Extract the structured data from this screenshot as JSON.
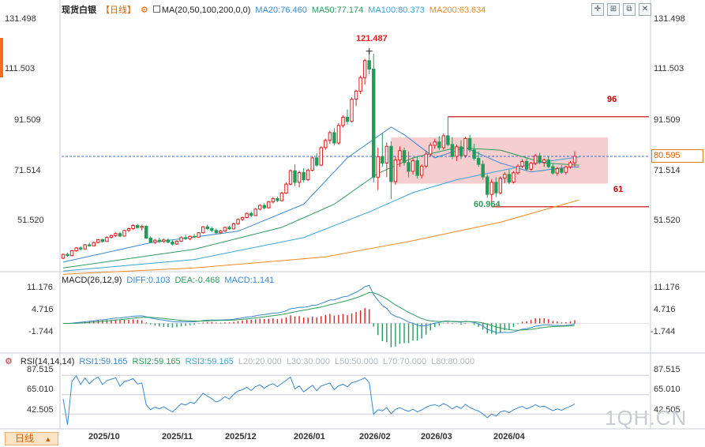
{
  "chart_data": [
    {
      "type": "candlestick",
      "title": "现货白银",
      "period_label": "【日线】",
      "indicator_label": "MA(20,50,100,200,0,0)",
      "ma_labels": [
        {
          "text": "MA20:76.460",
          "color": "#3a88d0"
        },
        {
          "text": "MA50:77.174",
          "color": "#2d9b5a"
        },
        {
          "text": "MA100:80.373",
          "color": "#3aa3d8"
        },
        {
          "text": "MA200:63.634",
          "color": "#f08a24"
        }
      ],
      "y_ticks": [
        "131.498",
        "111.503",
        "91.509",
        "71.514",
        "51.520"
      ],
      "y_tick_values": [
        131.498,
        111.503,
        91.509,
        71.514,
        51.52
      ],
      "ylim": [
        37.0,
        134.0
      ],
      "x_ticks": [
        "2025/10",
        "2025/11",
        "2025/12",
        "2026/01",
        "2026/02",
        "2026/03",
        "2026/04"
      ],
      "last_price": "80.595",
      "last_price_value": 80.595,
      "annotations": [
        {
          "text": "121.487",
          "value": 121.487,
          "color": "#e02020"
        },
        {
          "text": "60.964",
          "value": 60.964,
          "color": "#2d9b5a"
        },
        {
          "text": "96",
          "value": 96,
          "color": "#c00000"
        },
        {
          "text": "61",
          "value": 61,
          "color": "#c00000"
        }
      ],
      "range_box": {
        "low": 70.0,
        "high": 88.0
      },
      "candles": [
        [
          41.0,
          42.8,
          40.6,
          42.5
        ],
        [
          42.5,
          43.2,
          41.6,
          42.0
        ],
        [
          42.0,
          44.2,
          41.8,
          43.9
        ],
        [
          43.9,
          45.3,
          43.5,
          45.0
        ],
        [
          45.0,
          45.6,
          44.0,
          44.6
        ],
        [
          44.6,
          46.5,
          44.3,
          46.2
        ],
        [
          46.2,
          47.0,
          45.5,
          45.8
        ],
        [
          45.8,
          47.4,
          45.6,
          47.1
        ],
        [
          47.1,
          48.5,
          46.8,
          48.2
        ],
        [
          48.2,
          48.6,
          47.0,
          47.5
        ],
        [
          47.5,
          49.5,
          47.3,
          49.1
        ],
        [
          49.1,
          50.2,
          48.7,
          49.8
        ],
        [
          49.8,
          51.0,
          49.3,
          50.6
        ],
        [
          50.6,
          51.2,
          49.2,
          49.6
        ],
        [
          49.6,
          52.1,
          49.4,
          51.8
        ],
        [
          51.8,
          53.0,
          51.2,
          52.5
        ],
        [
          52.5,
          54.2,
          52.0,
          53.7
        ],
        [
          53.7,
          54.4,
          52.5,
          52.9
        ],
        [
          52.9,
          54.0,
          51.8,
          53.4
        ],
        [
          53.4,
          53.8,
          48.5,
          48.8
        ],
        [
          48.8,
          49.5,
          46.8,
          47.2
        ],
        [
          47.2,
          48.5,
          46.5,
          48.0
        ],
        [
          48.0,
          49.0,
          46.9,
          47.5
        ],
        [
          47.5,
          48.6,
          47.0,
          48.1
        ],
        [
          48.1,
          48.8,
          46.8,
          47.3
        ],
        [
          47.3,
          48.2,
          46.0,
          46.5
        ],
        [
          46.5,
          48.0,
          46.2,
          47.6
        ],
        [
          47.6,
          49.5,
          47.3,
          49.0
        ],
        [
          49.0,
          50.1,
          48.1,
          48.6
        ],
        [
          48.6,
          49.8,
          48.0,
          49.5
        ],
        [
          49.5,
          50.5,
          48.8,
          49.2
        ],
        [
          49.2,
          51.2,
          49.0,
          50.9
        ],
        [
          50.9,
          53.5,
          50.6,
          53.2
        ],
        [
          53.2,
          54.0,
          52.0,
          52.5
        ],
        [
          52.5,
          53.2,
          51.2,
          51.8
        ],
        [
          51.8,
          52.6,
          50.5,
          50.9
        ],
        [
          50.9,
          52.0,
          50.4,
          51.6
        ],
        [
          51.6,
          53.3,
          51.3,
          53.0
        ],
        [
          53.0,
          53.6,
          52.0,
          52.4
        ],
        [
          52.4,
          54.8,
          52.2,
          54.4
        ],
        [
          54.4,
          56.5,
          54.0,
          56.1
        ],
        [
          56.1,
          57.2,
          55.4,
          56.8
        ],
        [
          56.8,
          58.8,
          56.5,
          58.4
        ],
        [
          58.4,
          59.2,
          57.0,
          57.6
        ],
        [
          57.6,
          60.5,
          57.3,
          60.1
        ],
        [
          60.1,
          62.0,
          59.6,
          61.5
        ],
        [
          61.5,
          62.4,
          60.0,
          60.6
        ],
        [
          60.6,
          63.3,
          60.3,
          62.9
        ],
        [
          62.9,
          64.8,
          62.3,
          64.2
        ],
        [
          64.2,
          65.0,
          62.8,
          63.4
        ],
        [
          63.4,
          66.8,
          63.0,
          66.3
        ],
        [
          66.3,
          70.5,
          66.0,
          69.8
        ],
        [
          69.8,
          75.5,
          69.3,
          75.0
        ],
        [
          75.0,
          77.5,
          69.0,
          70.5
        ],
        [
          70.5,
          75.0,
          68.5,
          74.3
        ],
        [
          74.3,
          76.0,
          70.5,
          71.5
        ],
        [
          71.5,
          75.8,
          71.0,
          75.2
        ],
        [
          75.2,
          80.5,
          74.8,
          80.0
        ],
        [
          80.0,
          81.8,
          76.5,
          77.2
        ],
        [
          77.2,
          84.5,
          76.8,
          84.0
        ],
        [
          84.0,
          87.5,
          83.2,
          86.8
        ],
        [
          86.8,
          90.5,
          85.5,
          89.8
        ],
        [
          89.8,
          91.5,
          84.8,
          85.8
        ],
        [
          85.8,
          93.5,
          85.2,
          92.6
        ],
        [
          92.6,
          96.5,
          91.8,
          95.8
        ],
        [
          95.8,
          98.8,
          93.0,
          94.2
        ],
        [
          94.2,
          103.5,
          93.8,
          102.8
        ],
        [
          102.8,
          106.5,
          100.2,
          105.9
        ],
        [
          105.9,
          112.0,
          104.8,
          111.2
        ],
        [
          111.2,
          118.5,
          108.5,
          117.8
        ],
        [
          117.8,
          121.487,
          112.5,
          114.5
        ],
        [
          114.5,
          120.5,
          70.5,
          72.5
        ],
        [
          72.5,
          84.0,
          67.5,
          80.5
        ],
        [
          80.5,
          89.5,
          76.5,
          78.0
        ],
        [
          78.0,
          86.0,
          72.5,
          84.5
        ],
        [
          84.5,
          86.5,
          64.0,
          70.8
        ],
        [
          70.8,
          80.5,
          69.5,
          79.2
        ],
        [
          79.2,
          84.5,
          76.5,
          82.8
        ],
        [
          82.8,
          84.0,
          77.0,
          78.2
        ],
        [
          78.2,
          82.5,
          72.5,
          74.8
        ],
        [
          74.8,
          80.0,
          73.5,
          78.9
        ],
        [
          78.9,
          80.5,
          72.0,
          73.2
        ],
        [
          73.2,
          77.5,
          72.0,
          76.8
        ],
        [
          76.8,
          82.8,
          76.0,
          81.5
        ],
        [
          81.5,
          86.0,
          80.5,
          84.9
        ],
        [
          84.9,
          87.5,
          83.5,
          86.2
        ],
        [
          86.2,
          88.5,
          83.0,
          84.0
        ],
        [
          84.0,
          89.5,
          83.2,
          88.6
        ],
        [
          88.6,
          96.0,
          84.5,
          85.2
        ],
        [
          85.2,
          88.0,
          79.5,
          80.6
        ],
        [
          80.6,
          85.2,
          78.8,
          84.3
        ],
        [
          84.3,
          86.8,
          79.5,
          80.9
        ],
        [
          80.9,
          88.2,
          80.0,
          87.5
        ],
        [
          87.5,
          89.0,
          82.2,
          83.1
        ],
        [
          83.1,
          85.5,
          79.0,
          79.8
        ],
        [
          79.8,
          82.5,
          76.5,
          77.5
        ],
        [
          77.5,
          79.0,
          71.5,
          72.6
        ],
        [
          72.6,
          73.5,
          64.5,
          65.8
        ],
        [
          65.8,
          71.8,
          60.964,
          70.5
        ],
        [
          70.5,
          72.5,
          64.8,
          66.4
        ],
        [
          66.4,
          72.8,
          65.8,
          72.1
        ],
        [
          72.1,
          74.5,
          70.2,
          73.6
        ],
        [
          73.6,
          75.5,
          69.8,
          70.6
        ],
        [
          70.6,
          74.8,
          70.0,
          74.2
        ],
        [
          74.2,
          77.5,
          73.5,
          76.8
        ],
        [
          76.8,
          79.5,
          76.0,
          78.6
        ],
        [
          78.6,
          80.2,
          74.8,
          75.6
        ],
        [
          75.6,
          78.4,
          75.0,
          77.9
        ],
        [
          77.9,
          81.5,
          77.2,
          80.8
        ],
        [
          80.8,
          82.0,
          77.5,
          78.3
        ],
        [
          78.3,
          79.8,
          76.5,
          79.2
        ],
        [
          79.2,
          80.5,
          76.0,
          76.6
        ],
        [
          76.6,
          78.0,
          73.5,
          74.1
        ],
        [
          74.1,
          76.5,
          73.0,
          75.8
        ],
        [
          75.8,
          77.2,
          73.8,
          74.4
        ],
        [
          74.4,
          77.0,
          73.5,
          76.5
        ],
        [
          76.5,
          78.8,
          75.8,
          78.1
        ],
        [
          78.1,
          82.5,
          76.5,
          80.595
        ]
      ],
      "ma_series": [
        {
          "name": "MA20",
          "color": "#3a88d0",
          "values": [
            [
              0,
              39.5
            ],
            [
              20,
              47.0
            ],
            [
              40,
              51.5
            ],
            [
              55,
              62.0
            ],
            [
              65,
              80.0
            ],
            [
              75,
              92.0
            ],
            [
              78,
              89.0
            ],
            [
              85,
              80.0
            ],
            [
              92,
              84.0
            ],
            [
              100,
              78.0
            ],
            [
              107,
              74.5
            ],
            [
              115,
              76.3
            ],
            [
              118,
              76.46
            ]
          ]
        },
        {
          "name": "MA50",
          "color": "#2d9b5a",
          "values": [
            [
              0,
              37.2
            ],
            [
              30,
              44.5
            ],
            [
              50,
              53.0
            ],
            [
              62,
              62.0
            ],
            [
              72,
              74.0
            ],
            [
              80,
              80.0
            ],
            [
              90,
              84.0
            ],
            [
              100,
              83.0
            ],
            [
              110,
              78.0
            ],
            [
              118,
              77.174
            ]
          ]
        },
        {
          "name": "MA100",
          "color": "#3aa3d8",
          "values": [
            [
              0,
              36.0
            ],
            [
              30,
              40.5
            ],
            [
              55,
              49.0
            ],
            [
              70,
              59.0
            ],
            [
              80,
              66.5
            ],
            [
              90,
              71.5
            ],
            [
              100,
              75.0
            ],
            [
              110,
              78.5
            ],
            [
              118,
              80.373
            ]
          ]
        },
        {
          "name": "MA200",
          "color": "#f08a24",
          "values": [
            [
              0,
              34.8
            ],
            [
              30,
              37.2
            ],
            [
              60,
              41.5
            ],
            [
              80,
              47.8
            ],
            [
              100,
              55.0
            ],
            [
              118,
              63.634
            ]
          ]
        }
      ]
    },
    {
      "type": "macd",
      "label": "MACD(26,12,9)",
      "readouts": [
        {
          "text": "DIFF:0.103",
          "color": "#3a88d0"
        },
        {
          "text": "DEA:-0.468",
          "color": "#2d9b5a"
        },
        {
          "text": "MACD:1.141",
          "color": "#3a88d0"
        }
      ],
      "y_ticks": [
        "11.176",
        "4.716",
        "-1.744"
      ],
      "y_tick_values": [
        11.176,
        4.716,
        -1.744
      ],
      "ylim": [
        -10.0,
        13.0
      ]
    },
    {
      "type": "rsi",
      "label": "RSI(14,14,14)",
      "readouts": [
        {
          "text": "RSI1:59.165",
          "color": "#3a88d0"
        },
        {
          "text": "RSI2:59.165",
          "color": "#2d9b5a"
        },
        {
          "text": "RSI3:59.165",
          "color": "#3aa3d8"
        },
        {
          "text": "L20:20.000",
          "color": "#b0b8c0"
        },
        {
          "text": "L30:30.000",
          "color": "#b0b8c0"
        },
        {
          "text": "L50:50.000",
          "color": "#b0b8c0"
        },
        {
          "text": "L70:70.000",
          "color": "#b0b8c0"
        },
        {
          "text": "L80:80.000",
          "color": "#b0b8c0"
        }
      ],
      "y_ticks": [
        "87.515",
        "65.010",
        "42.505"
      ],
      "y_tick_values": [
        87.515,
        65.01,
        42.505
      ],
      "ylim": [
        28.0,
        96.0
      ]
    }
  ],
  "ui": {
    "period_button": "日线",
    "period_arrow": "▲",
    "watermark": "1QH.CN",
    "toolbar_icons": [
      "crosshair-icon",
      "maximize-icon",
      "restore-icon",
      "close-icon"
    ],
    "colors": {
      "up": "#e02020",
      "down": "#1f9c5a",
      "range_box": "#f6c5c8",
      "level_line": "#c00000",
      "last_price": "#e06000",
      "grid": "#c9ced4"
    }
  }
}
